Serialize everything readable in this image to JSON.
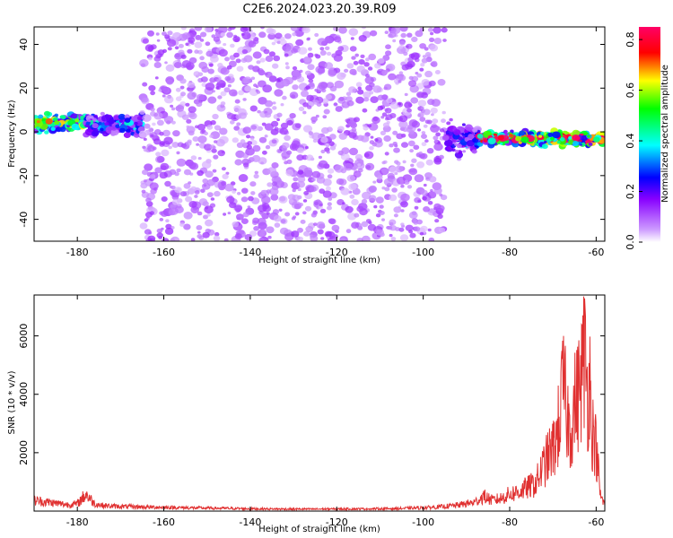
{
  "title": "C2E6.2024.023.20.39.R09",
  "chart_data": [
    {
      "type": "heatmap",
      "xlabel": "Height of straight line (km)",
      "ylabel": "Frequency (Hz)",
      "xlim": [
        -190,
        -58
      ],
      "ylim": [
        -50,
        48
      ],
      "xticks": [
        -180,
        -160,
        -140,
        -120,
        -100,
        -80,
        -60
      ],
      "yticks": [
        -40,
        -20,
        0,
        20,
        40
      ],
      "grid": false,
      "colorbar": {
        "label": "Normalized spectral amplitude",
        "range": [
          0.0,
          0.85
        ],
        "ticks": [
          0.0,
          0.2,
          0.4,
          0.6,
          0.8
        ],
        "colormap": [
          "#ffffff",
          "#cc99ff",
          "#8800ff",
          "#0000ff",
          "#00ffff",
          "#00ff00",
          "#ffff00",
          "#ff0000",
          "#ff0066"
        ]
      },
      "regions": [
        {
          "x": [
            -190,
            -178
          ],
          "freq_center": 4,
          "freq_width": 5,
          "amplitude": 0.35
        },
        {
          "x": [
            -178,
            -165
          ],
          "freq_center": 3,
          "freq_width": 6,
          "amplitude": 0.2
        },
        {
          "x": [
            -165,
            -95
          ],
          "freq_center": 0,
          "freq_width": 96,
          "amplitude": 0.1
        },
        {
          "x": [
            -95,
            -87
          ],
          "freq_center": -3,
          "freq_width": 10,
          "amplitude": 0.15
        },
        {
          "x": [
            -87,
            -58
          ],
          "freq_center": -3,
          "freq_width": 4,
          "amplitude": 0.5
        }
      ]
    },
    {
      "type": "line",
      "xlabel": "Height of straight line (km)",
      "ylabel": "SNR (10 * v/v)",
      "xlim": [
        -190,
        -58
      ],
      "ylim": [
        0,
        7400
      ],
      "xticks": [
        -180,
        -160,
        -140,
        -120,
        -100,
        -80,
        -60
      ],
      "yticks": [
        2000,
        4000,
        6000
      ],
      "grid": false,
      "series": [
        {
          "color": "#e03030",
          "x": [
            -190,
            -188,
            -186,
            -184,
            -182,
            -180,
            -178,
            -176,
            -174,
            -172,
            -170,
            -168,
            -166,
            -164,
            -162,
            -160,
            -155,
            -150,
            -145,
            -140,
            -135,
            -130,
            -125,
            -120,
            -115,
            -110,
            -105,
            -100,
            -96,
            -92,
            -90,
            -88,
            -86,
            -85,
            -84,
            -82,
            -80,
            -78,
            -76,
            -74,
            -72,
            -71,
            -70,
            -69,
            -68,
            -67.5,
            -67,
            -66,
            -65,
            -64,
            -63,
            -62.5,
            -62,
            -61.5,
            -61,
            -60,
            -59,
            -58
          ],
          "y": [
            500,
            450,
            400,
            350,
            300,
            350,
            800,
            350,
            260,
            230,
            220,
            210,
            200,
            190,
            185,
            175,
            160,
            140,
            130,
            110,
            100,
            95,
            95,
            100,
            105,
            110,
            125,
            160,
            200,
            280,
            350,
            420,
            700,
            600,
            500,
            600,
            800,
            900,
            1100,
            1300,
            2200,
            2600,
            2900,
            3600,
            5200,
            6100,
            4800,
            3800,
            5000,
            5600,
            7000,
            7400,
            5400,
            6400,
            4000,
            3000,
            700,
            300
          ]
        }
      ]
    }
  ]
}
